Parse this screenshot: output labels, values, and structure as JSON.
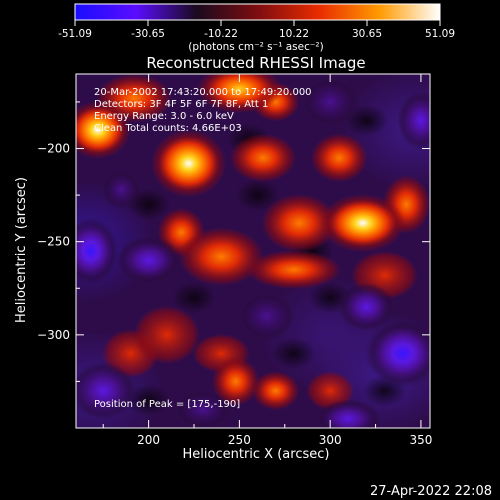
{
  "colorbar": {
    "ticks": [
      "-51.09",
      "-30.65",
      "-10.22",
      "10.22",
      "30.65",
      "51.09"
    ],
    "unit_label": "(photons cm⁻² s⁻¹ asec⁻²)",
    "range": [
      -51.09,
      51.09
    ],
    "stops": [
      "#1a0dff",
      "#5a0dff",
      "#1a0a1e",
      "#7d0d10",
      "#e82b00",
      "#ff9a00",
      "#ffffff"
    ]
  },
  "footer": {
    "timestamp": "27-Apr-2022 22:08"
  },
  "chart_data": {
    "type": "heatmap",
    "title": "Reconstructed RHESSI Image",
    "xlabel": "Heliocentric X (arcsec)",
    "ylabel": "Heliocentric Y (arcsec)",
    "xlim": [
      160,
      355
    ],
    "ylim": [
      -350,
      -160
    ],
    "x_ticks": [
      200,
      250,
      300,
      350
    ],
    "y_ticks": [
      -200,
      -250,
      -300
    ],
    "annotations": {
      "time_range": "20-Mar-2002 17:43:20.000 to 17:49:20.000",
      "detectors": "Detectors: 3F 4F 5F 6F 7F 8F, Att 1",
      "energy": "Energy Range: 3.0 - 6.0 keV",
      "method": "Clean     Total counts: 4.66E+03",
      "peak": "Position of Peak = [175,-190]"
    },
    "peak": {
      "x": 175,
      "y": -190,
      "value": 51.09
    },
    "blobs": [
      {
        "x": 172,
        "y": -190,
        "value": 51,
        "rx": 14,
        "ry": 12
      },
      {
        "x": 222,
        "y": -208,
        "value": 44,
        "rx": 16,
        "ry": 14
      },
      {
        "x": 192,
        "y": -173,
        "value": 30,
        "rx": 16,
        "ry": 10
      },
      {
        "x": 250,
        "y": -168,
        "value": 32,
        "rx": 18,
        "ry": 10
      },
      {
        "x": 263,
        "y": -205,
        "value": 30,
        "rx": 14,
        "ry": 10
      },
      {
        "x": 305,
        "y": -205,
        "value": 24,
        "rx": 12,
        "ry": 10
      },
      {
        "x": 318,
        "y": -240,
        "value": 46,
        "rx": 18,
        "ry": 12
      },
      {
        "x": 283,
        "y": -240,
        "value": 30,
        "rx": 16,
        "ry": 12
      },
      {
        "x": 342,
        "y": -230,
        "value": 30,
        "rx": 10,
        "ry": 12
      },
      {
        "x": 240,
        "y": -258,
        "value": 26,
        "rx": 18,
        "ry": 12
      },
      {
        "x": 218,
        "y": -245,
        "value": 22,
        "rx": 10,
        "ry": 10
      },
      {
        "x": 280,
        "y": -265,
        "value": 22,
        "rx": 20,
        "ry": 8
      },
      {
        "x": 330,
        "y": -268,
        "value": 18,
        "rx": 14,
        "ry": 10
      },
      {
        "x": 210,
        "y": -300,
        "value": 20,
        "rx": 14,
        "ry": 12
      },
      {
        "x": 240,
        "y": -310,
        "value": 16,
        "rx": 12,
        "ry": 8
      },
      {
        "x": 270,
        "y": -330,
        "value": 30,
        "rx": 10,
        "ry": 8
      },
      {
        "x": 248,
        "y": -325,
        "value": 22,
        "rx": 10,
        "ry": 10
      },
      {
        "x": 300,
        "y": -330,
        "value": 14,
        "rx": 10,
        "ry": 8
      },
      {
        "x": 190,
        "y": -310,
        "value": 16,
        "rx": 12,
        "ry": 10
      },
      {
        "x": 270,
        "y": -175,
        "value": 22,
        "rx": 10,
        "ry": 8
      },
      {
        "x": 168,
        "y": -255,
        "value": -40,
        "rx": 12,
        "ry": 14
      },
      {
        "x": 200,
        "y": -260,
        "value": -28,
        "rx": 14,
        "ry": 10
      },
      {
        "x": 175,
        "y": -330,
        "value": -26,
        "rx": 14,
        "ry": 12
      },
      {
        "x": 340,
        "y": -310,
        "value": -32,
        "rx": 16,
        "ry": 14
      },
      {
        "x": 320,
        "y": -285,
        "value": -24,
        "rx": 12,
        "ry": 10
      },
      {
        "x": 350,
        "y": -185,
        "value": -26,
        "rx": 10,
        "ry": 12
      },
      {
        "x": 300,
        "y": -175,
        "value": -18,
        "rx": 12,
        "ry": 10
      },
      {
        "x": 230,
        "y": -340,
        "value": -20,
        "rx": 12,
        "ry": 8
      },
      {
        "x": 310,
        "y": -345,
        "value": -22,
        "rx": 14,
        "ry": 8
      },
      {
        "x": 265,
        "y": -290,
        "value": -14,
        "rx": 12,
        "ry": 10
      },
      {
        "x": 185,
        "y": -222,
        "value": -16,
        "rx": 8,
        "ry": 8
      }
    ]
  }
}
